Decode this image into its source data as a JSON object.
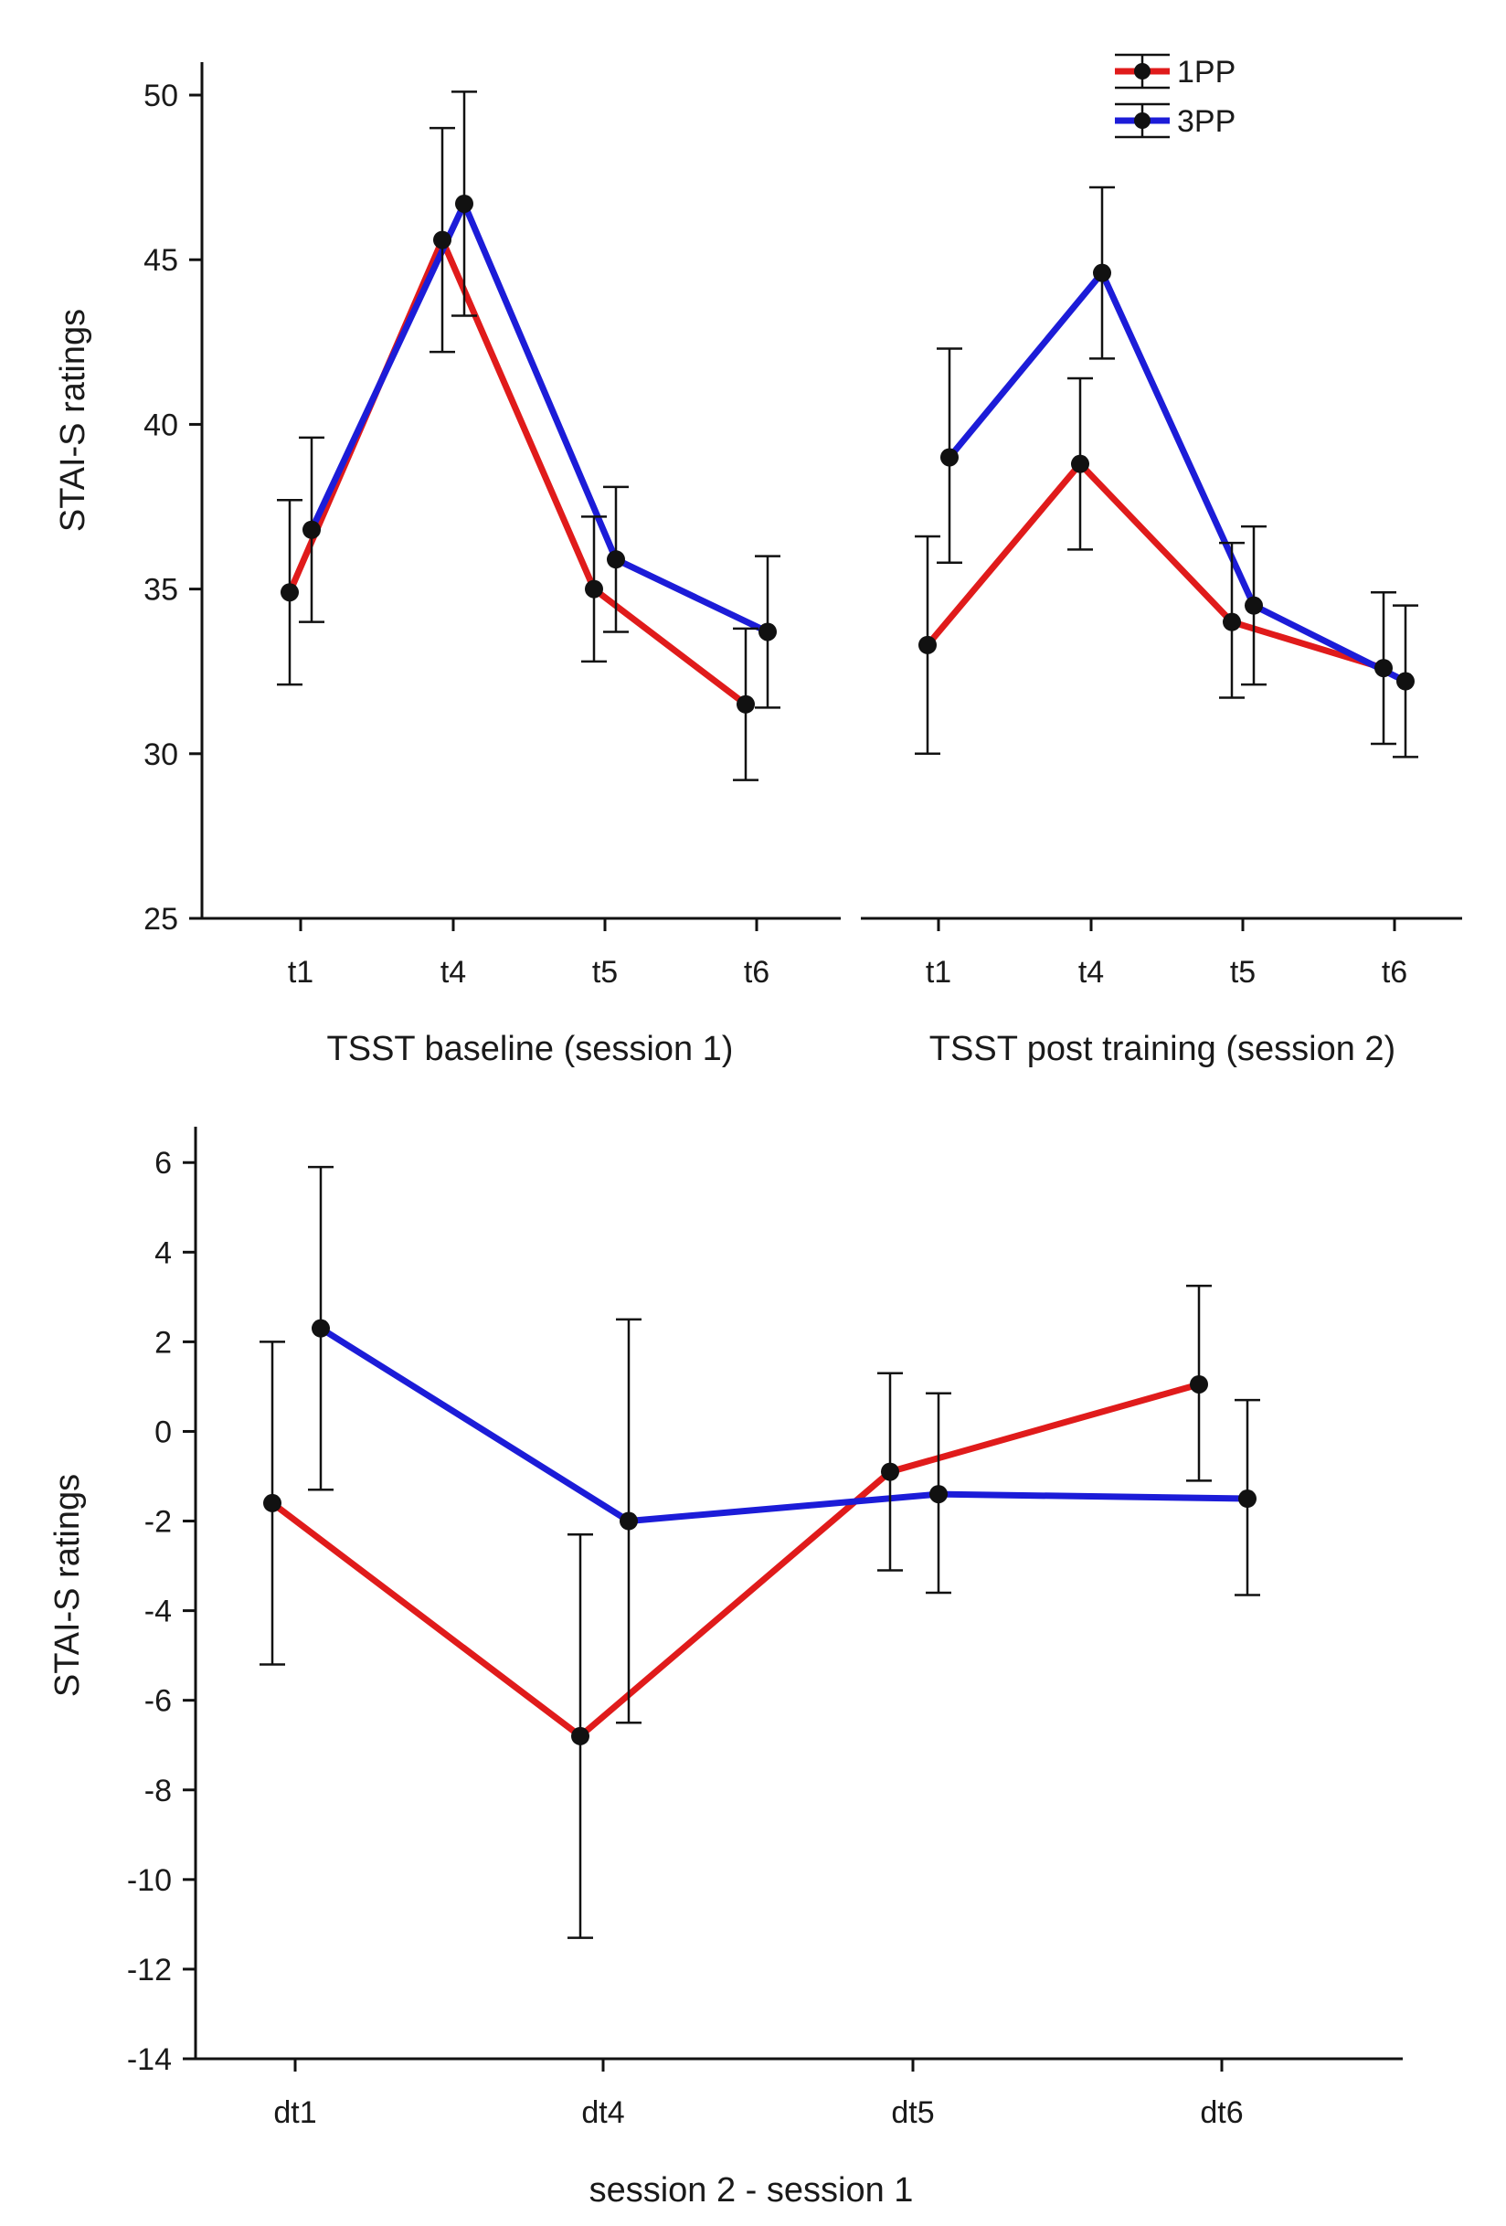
{
  "legend": {
    "entries": [
      {
        "name": "1PP",
        "color": "#e01b1b"
      },
      {
        "name": "3PP",
        "color": "#1c1cd8"
      }
    ]
  },
  "chart_data": [
    {
      "type": "line",
      "title": "",
      "xlabel": "TSST baseline (session 1)",
      "ylabel": "STAI-S ratings",
      "categories": [
        "t1",
        "t4",
        "t5",
        "t6"
      ],
      "ylim": [
        25,
        51
      ],
      "yticks": [
        25,
        30,
        35,
        40,
        45,
        50
      ],
      "series": [
        {
          "name": "1PP",
          "color": "#e01b1b",
          "values": [
            34.9,
            45.6,
            35.0,
            31.5
          ],
          "err_low": [
            32.1,
            42.2,
            32.8,
            29.2
          ],
          "err_high": [
            37.7,
            49.0,
            37.2,
            33.8
          ]
        },
        {
          "name": "3PP",
          "color": "#1c1cd8",
          "values": [
            36.8,
            46.7,
            35.9,
            33.7
          ],
          "err_low": [
            34.0,
            43.3,
            33.7,
            31.4
          ],
          "err_high": [
            39.6,
            50.1,
            38.1,
            36.0
          ]
        }
      ]
    },
    {
      "type": "line",
      "title": "",
      "xlabel": "TSST post training (session 2)",
      "ylabel": "",
      "categories": [
        "t1",
        "t4",
        "t5",
        "t6"
      ],
      "ylim": [
        25,
        51
      ],
      "yticks": [],
      "series": [
        {
          "name": "1PP",
          "color": "#e01b1b",
          "values": [
            33.3,
            38.8,
            34.0,
            32.6
          ],
          "err_low": [
            30.0,
            36.2,
            31.7,
            30.3
          ],
          "err_high": [
            36.6,
            41.4,
            36.4,
            34.9
          ]
        },
        {
          "name": "3PP",
          "color": "#1c1cd8",
          "values": [
            39.0,
            44.6,
            34.5,
            32.2
          ],
          "err_low": [
            35.8,
            42.0,
            32.1,
            29.9
          ],
          "err_high": [
            42.3,
            47.2,
            36.9,
            34.5
          ]
        }
      ]
    },
    {
      "type": "line",
      "title": "",
      "xlabel": "session 2 - session 1",
      "ylabel": "STAI-S ratings",
      "categories": [
        "dt1",
        "dt4",
        "dt5",
        "dt6"
      ],
      "ylim": [
        -14,
        6.8
      ],
      "yticks": [
        -14,
        -12,
        -10,
        -8,
        -6,
        -4,
        -2,
        0,
        2,
        4,
        6
      ],
      "series": [
        {
          "name": "1PP",
          "color": "#e01b1b",
          "values": [
            -1.6,
            -6.8,
            -0.9,
            1.05
          ],
          "err_low": [
            -5.2,
            -11.3,
            -3.1,
            -1.1
          ],
          "err_high": [
            2.0,
            -2.3,
            1.3,
            3.25
          ]
        },
        {
          "name": "3PP",
          "color": "#1c1cd8",
          "values": [
            2.3,
            -2.0,
            -1.4,
            -1.5
          ],
          "err_low": [
            -1.3,
            -6.5,
            -3.6,
            -3.65
          ],
          "err_high": [
            5.9,
            2.5,
            0.85,
            0.7
          ]
        }
      ]
    }
  ]
}
